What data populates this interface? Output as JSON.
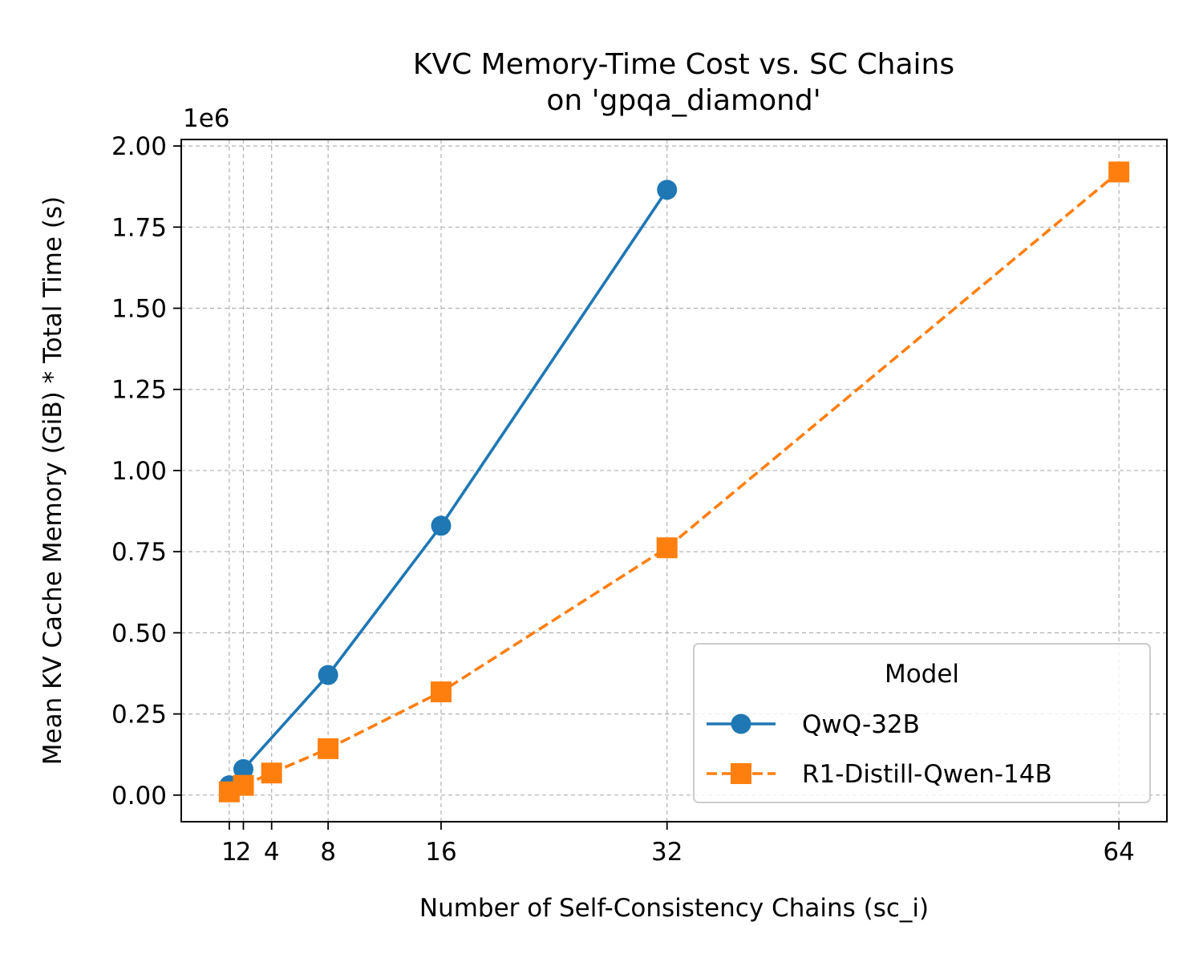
{
  "chart_data": {
    "type": "line",
    "title": "KVC Memory-Time Cost vs. SC Chains\non 'gpqa_diamond'",
    "xlabel": "Number of Self-Consistency Chains (sc_i)",
    "ylabel": "Mean KV Cache Memory (GiB) * Total Time (s)",
    "y_offset_label": "1e6",
    "xlim": [
      -2.4,
      67.4
    ],
    "ylim": [
      -0.082,
      2.02
    ],
    "x_ticks": [
      1,
      2,
      4,
      8,
      16,
      32,
      64
    ],
    "x_tick_labels": [
      "1",
      "2",
      "4",
      "8",
      "16",
      "32",
      "64"
    ],
    "y_ticks": [
      0.0,
      0.25,
      0.5,
      0.75,
      1.0,
      1.25,
      1.5,
      1.75,
      2.0
    ],
    "y_tick_labels": [
      "0.00",
      "0.25",
      "0.50",
      "0.75",
      "1.00",
      "1.25",
      "1.50",
      "1.75",
      "2.00"
    ],
    "grid": true,
    "legend": {
      "title": "Model",
      "placement": "lower-right"
    },
    "series": [
      {
        "name": "QwQ-32B",
        "color": "#1f77b4",
        "marker": "circle",
        "line_style": "solid",
        "x": [
          1,
          2,
          8,
          16,
          32
        ],
        "y": [
          0.03,
          0.08,
          0.37,
          0.83,
          1.865
        ]
      },
      {
        "name": "R1-Distill-Qwen-14B",
        "color": "#ff7f0e",
        "marker": "square",
        "line_style": "dashed",
        "x": [
          1,
          2,
          4,
          8,
          16,
          32,
          64
        ],
        "y": [
          0.01,
          0.03,
          0.068,
          0.143,
          0.318,
          0.762,
          1.92
        ]
      }
    ]
  }
}
